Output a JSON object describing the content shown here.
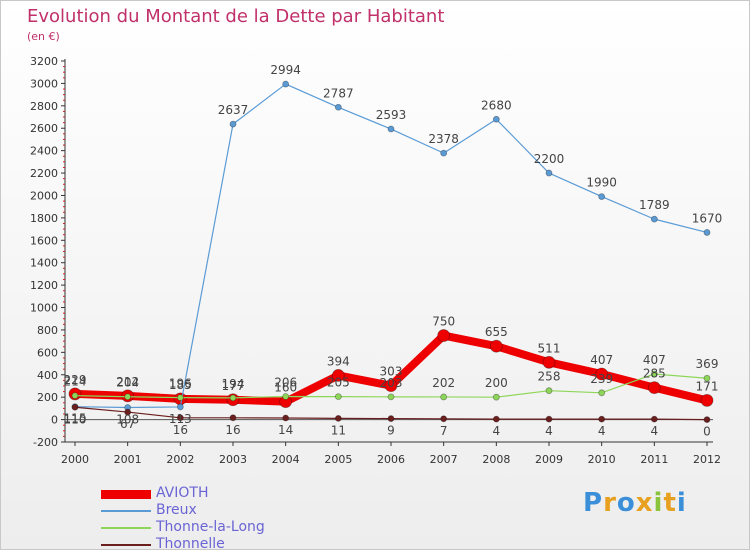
{
  "title": "Evolution du Montant de la Dette par Habitant",
  "unit_label": "(en €)",
  "chart_data": {
    "type": "line",
    "title": "Evolution du Montant de la Dette par Habitant",
    "ylabel": "(en €)",
    "xlabel": "",
    "ylim": [
      -200,
      3200
    ],
    "y_ticks": [
      -200,
      0,
      200,
      400,
      600,
      800,
      1000,
      1200,
      1400,
      1600,
      1800,
      2000,
      2200,
      2400,
      2600,
      2800,
      3000,
      3200
    ],
    "x": [
      "2000",
      "2001",
      "2002",
      "2003",
      "2004",
      "2005",
      "2006",
      "2007",
      "2008",
      "2009",
      "2010",
      "2011",
      "2012"
    ],
    "grid": false,
    "legend_position": "bottom-left",
    "series": [
      {
        "name": "AVIOTH",
        "color": "#ee0000",
        "values": [
          229,
          212,
          185,
          177,
          160,
          394,
          303,
          750,
          655,
          511,
          407,
          285,
          171
        ],
        "labels": [
          "229",
          "212",
          "185",
          "177",
          "160",
          "394",
          "303",
          "750",
          "655",
          "511",
          "407",
          "285",
          "171"
        ]
      },
      {
        "name": "Breux",
        "color": "#5b9bd5",
        "values": [
          115,
          108,
          113,
          2637,
          2994,
          2787,
          2593,
          2378,
          2680,
          2200,
          1990,
          1789,
          1670
        ],
        "labels": [
          "115",
          "108",
          "113",
          "2637",
          "2994",
          "2787",
          "2593",
          "2378",
          "2680",
          "2200",
          "1990",
          "1789",
          "1670"
        ]
      },
      {
        "name": "Thonne-la-Long",
        "color": "#8ed65a",
        "values": [
          214,
          204,
          196,
          194,
          206,
          205,
          203,
          202,
          200,
          258,
          239,
          407,
          369
        ],
        "labels": [
          "214",
          "204",
          "196",
          "194",
          "206",
          "205",
          "203",
          "202",
          "200",
          "258",
          "239",
          "407",
          "369"
        ]
      },
      {
        "name": "Thonnelle",
        "color": "#6b1e1e",
        "values": [
          110,
          67,
          16,
          16,
          14,
          11,
          9,
          7,
          4,
          4,
          4,
          4,
          0
        ],
        "labels": [
          "110",
          "67",
          "16",
          "16",
          "14",
          "11",
          "9",
          "7",
          "4",
          "4",
          "4",
          "4",
          "0"
        ]
      }
    ]
  },
  "logo": {
    "text": "Proxiti",
    "letter_colors": [
      "#3a8fd8",
      "#e8a020",
      "#3a8fd8",
      "#e8a020",
      "#8ac43c",
      "#e8a020",
      "#3a8fd8"
    ]
  }
}
